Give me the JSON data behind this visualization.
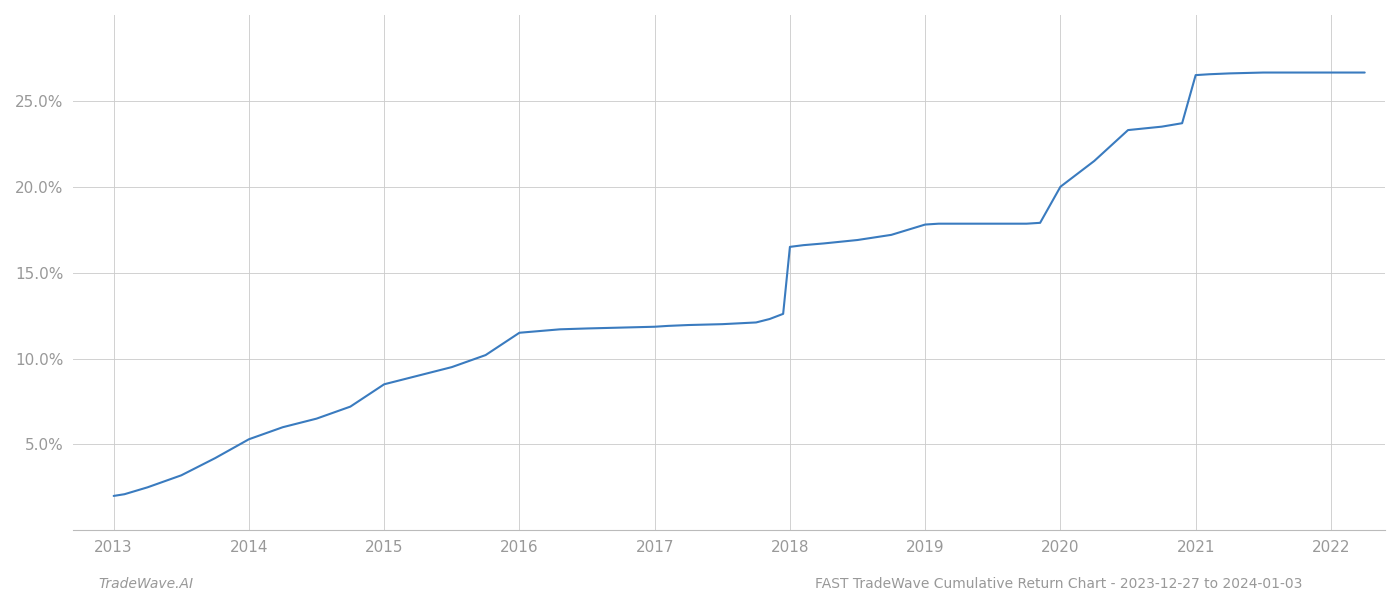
{
  "title": "",
  "footer_left": "TradeWave.AI",
  "footer_right": "FAST TradeWave Cumulative Return Chart - 2023-12-27 to 2024-01-03",
  "line_color": "#3a7bbf",
  "line_width": 1.5,
  "background_color": "#ffffff",
  "grid_color": "#cccccc",
  "x_values": [
    2013.0,
    2013.08,
    2013.25,
    2013.5,
    2013.75,
    2014.0,
    2014.25,
    2014.5,
    2014.75,
    2015.0,
    2015.25,
    2015.5,
    2015.75,
    2016.0,
    2016.15,
    2016.3,
    2016.5,
    2016.75,
    2017.0,
    2017.1,
    2017.25,
    2017.5,
    2017.75,
    2017.85,
    2017.95,
    2018.0,
    2018.1,
    2018.25,
    2018.5,
    2018.75,
    2019.0,
    2019.1,
    2019.25,
    2019.5,
    2019.75,
    2019.85,
    2020.0,
    2020.25,
    2020.5,
    2020.75,
    2020.9,
    2021.0,
    2021.1,
    2021.25,
    2021.5,
    2021.75,
    2022.0,
    2022.1,
    2022.25
  ],
  "y_values": [
    2.0,
    2.1,
    2.5,
    3.2,
    4.2,
    5.3,
    6.0,
    6.5,
    7.2,
    8.5,
    9.0,
    9.5,
    10.2,
    11.5,
    11.6,
    11.7,
    11.75,
    11.8,
    11.85,
    11.9,
    11.95,
    12.0,
    12.1,
    12.3,
    12.6,
    16.5,
    16.6,
    16.7,
    16.9,
    17.2,
    17.8,
    17.85,
    17.85,
    17.85,
    17.85,
    17.9,
    20.0,
    21.5,
    23.3,
    23.5,
    23.7,
    26.5,
    26.55,
    26.6,
    26.65,
    26.65,
    26.65,
    26.65,
    26.65
  ],
  "yticks": [
    5.0,
    10.0,
    15.0,
    20.0,
    25.0
  ],
  "ytick_labels": [
    "5.0%",
    "10.0%",
    "15.0%",
    "20.0%",
    "25.0%"
  ],
  "xticks": [
    2013,
    2014,
    2015,
    2016,
    2017,
    2018,
    2019,
    2020,
    2021,
    2022
  ],
  "xlim": [
    2012.7,
    2022.4
  ],
  "ylim": [
    0,
    30
  ],
  "tick_color": "#999999",
  "tick_fontsize": 11,
  "footer_fontsize": 10
}
